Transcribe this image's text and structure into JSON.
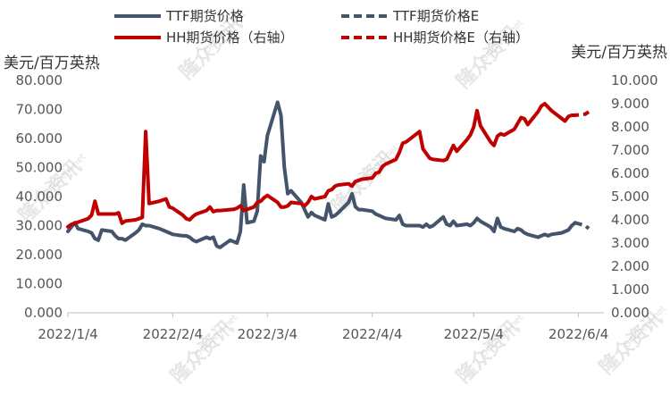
{
  "chart_data": {
    "type": "line",
    "x_labels": [
      "2022/1/4",
      "2022/2/4",
      "2022/3/4",
      "2022/4/4",
      "2022/5/4",
      "2022/6/4"
    ],
    "left_unit": "美元/百万英热",
    "right_unit": "美元/百万英热",
    "left_ticks": [
      "0.000",
      "10.000",
      "20.000",
      "30.000",
      "40.000",
      "50.000",
      "60.000",
      "70.000",
      "80.000"
    ],
    "right_ticks": [
      "0.000",
      "1.000",
      "2.000",
      "3.000",
      "4.000",
      "5.000",
      "6.000",
      "7.000",
      "8.000",
      "9.000",
      "10.000"
    ],
    "ylim_left": [
      0,
      80
    ],
    "ylim_right": [
      0,
      10
    ],
    "grid": false,
    "legend_position": "top",
    "series": [
      {
        "name": "TTF期货价格",
        "axis": "left",
        "color": "#44546a",
        "style": "solid",
        "points": [
          [
            "2022-01-04",
            28.0
          ],
          [
            "2022-01-05",
            29.5
          ],
          [
            "2022-01-06",
            31.0
          ],
          [
            "2022-01-07",
            29.0
          ],
          [
            "2022-01-10",
            28.0
          ],
          [
            "2022-01-11",
            27.5
          ],
          [
            "2022-01-12",
            25.5
          ],
          [
            "2022-01-13",
            25.0
          ],
          [
            "2022-01-14",
            28.5
          ],
          [
            "2022-01-17",
            28.0
          ],
          [
            "2022-01-18",
            26.5
          ],
          [
            "2022-01-19",
            25.5
          ],
          [
            "2022-01-20",
            25.5
          ],
          [
            "2022-01-21",
            25.0
          ],
          [
            "2022-01-24",
            27.5
          ],
          [
            "2022-01-25",
            28.5
          ],
          [
            "2022-01-26",
            30.5
          ],
          [
            "2022-01-27",
            30.0
          ],
          [
            "2022-01-28",
            30.0
          ],
          [
            "2022-01-31",
            29.0
          ],
          [
            "2022-02-01",
            28.5
          ],
          [
            "2022-02-02",
            28.0
          ],
          [
            "2022-02-03",
            27.5
          ],
          [
            "2022-02-04",
            27.0
          ],
          [
            "2022-02-07",
            26.5
          ],
          [
            "2022-02-08",
            26.5
          ],
          [
            "2022-02-09",
            26.0
          ],
          [
            "2022-02-10",
            25.0
          ],
          [
            "2022-02-11",
            24.5
          ],
          [
            "2022-02-14",
            26.0
          ],
          [
            "2022-02-15",
            25.5
          ],
          [
            "2022-02-16",
            26.0
          ],
          [
            "2022-02-17",
            23.0
          ],
          [
            "2022-02-18",
            22.5
          ],
          [
            "2022-02-21",
            25.0
          ],
          [
            "2022-02-22",
            24.5
          ],
          [
            "2022-02-23",
            24.0
          ],
          [
            "2022-02-24",
            28.0
          ],
          [
            "2022-02-25",
            44.0
          ],
          [
            "2022-02-26",
            31.0
          ],
          [
            "2022-02-28",
            31.5
          ],
          [
            "2022-03-01",
            35.0
          ],
          [
            "2022-03-02",
            54.0
          ],
          [
            "2022-03-03",
            52.0
          ],
          [
            "2022-03-04",
            61.0
          ],
          [
            "2022-03-07",
            72.5
          ],
          [
            "2022-03-08",
            68.0
          ],
          [
            "2022-03-09",
            50.0
          ],
          [
            "2022-03-10",
            41.0
          ],
          [
            "2022-03-11",
            42.0
          ],
          [
            "2022-03-14",
            38.0
          ],
          [
            "2022-03-15",
            35.5
          ],
          [
            "2022-03-16",
            33.0
          ],
          [
            "2022-03-17",
            34.5
          ],
          [
            "2022-03-18",
            33.5
          ],
          [
            "2022-03-21",
            32.0
          ],
          [
            "2022-03-22",
            37.5
          ],
          [
            "2022-03-23",
            33.0
          ],
          [
            "2022-03-24",
            33.5
          ],
          [
            "2022-03-25",
            34.5
          ],
          [
            "2022-03-28",
            38.0
          ],
          [
            "2022-03-29",
            41.0
          ],
          [
            "2022-03-30",
            36.5
          ],
          [
            "2022-03-31",
            35.5
          ],
          [
            "2022-04-01",
            35.5
          ],
          [
            "2022-04-04",
            35.0
          ],
          [
            "2022-04-05",
            34.0
          ],
          [
            "2022-04-06",
            33.5
          ],
          [
            "2022-04-07",
            33.0
          ],
          [
            "2022-04-08",
            32.5
          ],
          [
            "2022-04-11",
            32.0
          ],
          [
            "2022-04-12",
            33.5
          ],
          [
            "2022-04-13",
            30.5
          ],
          [
            "2022-04-14",
            30.0
          ],
          [
            "2022-04-18",
            30.0
          ],
          [
            "2022-04-19",
            29.5
          ],
          [
            "2022-04-20",
            30.5
          ],
          [
            "2022-04-21",
            29.5
          ],
          [
            "2022-04-22",
            30.0
          ],
          [
            "2022-04-25",
            33.0
          ],
          [
            "2022-04-26",
            30.5
          ],
          [
            "2022-04-27",
            30.0
          ],
          [
            "2022-04-28",
            31.5
          ],
          [
            "2022-04-29",
            30.0
          ],
          [
            "2022-05-02",
            30.5
          ],
          [
            "2022-05-03",
            30.0
          ],
          [
            "2022-05-04",
            31.0
          ],
          [
            "2022-05-05",
            32.5
          ],
          [
            "2022-05-06",
            31.5
          ],
          [
            "2022-05-09",
            29.5
          ],
          [
            "2022-05-10",
            28.0
          ],
          [
            "2022-05-11",
            32.5
          ],
          [
            "2022-05-12",
            29.5
          ],
          [
            "2022-05-13",
            29.0
          ],
          [
            "2022-05-16",
            28.0
          ],
          [
            "2022-05-17",
            29.0
          ],
          [
            "2022-05-18",
            28.5
          ],
          [
            "2022-05-19",
            27.5
          ],
          [
            "2022-05-20",
            27.0
          ],
          [
            "2022-05-23",
            26.0
          ],
          [
            "2022-05-24",
            26.5
          ],
          [
            "2022-05-25",
            27.0
          ],
          [
            "2022-05-26",
            26.5
          ],
          [
            "2022-05-27",
            27.0
          ],
          [
            "2022-05-30",
            27.5
          ],
          [
            "2022-05-31",
            28.0
          ],
          [
            "2022-06-01",
            28.5
          ],
          [
            "2022-06-02",
            30.0
          ],
          [
            "2022-06-03",
            31.0
          ]
        ]
      },
      {
        "name": "TTF期货价格E",
        "axis": "left",
        "color": "#44546a",
        "style": "dashed",
        "points": [
          [
            "2022-06-03",
            31.0
          ],
          [
            "2022-06-06",
            30.0
          ],
          [
            "2022-06-07",
            29.0
          ]
        ]
      },
      {
        "name": "HH期货价格（右轴）",
        "axis": "right",
        "color": "#c00000",
        "style": "solid",
        "points": [
          [
            "2022-01-04",
            3.7
          ],
          [
            "2022-01-05",
            3.8
          ],
          [
            "2022-01-06",
            3.85
          ],
          [
            "2022-01-07",
            3.9
          ],
          [
            "2022-01-10",
            4.05
          ],
          [
            "2022-01-11",
            4.2
          ],
          [
            "2022-01-12",
            4.8
          ],
          [
            "2022-01-13",
            4.25
          ],
          [
            "2022-01-14",
            4.25
          ],
          [
            "2022-01-18",
            4.25
          ],
          [
            "2022-01-19",
            4.3
          ],
          [
            "2022-01-20",
            3.85
          ],
          [
            "2022-01-21",
            3.95
          ],
          [
            "2022-01-24",
            4.0
          ],
          [
            "2022-01-25",
            4.05
          ],
          [
            "2022-01-26",
            4.1
          ],
          [
            "2022-01-27",
            7.8
          ],
          [
            "2022-01-28",
            4.7
          ],
          [
            "2022-01-31",
            4.8
          ],
          [
            "2022-02-01",
            4.85
          ],
          [
            "2022-02-02",
            4.9
          ],
          [
            "2022-02-03",
            4.55
          ],
          [
            "2022-02-04",
            4.5
          ],
          [
            "2022-02-07",
            4.2
          ],
          [
            "2022-02-08",
            4.05
          ],
          [
            "2022-02-09",
            4.0
          ],
          [
            "2022-02-10",
            4.15
          ],
          [
            "2022-02-11",
            4.25
          ],
          [
            "2022-02-14",
            4.4
          ],
          [
            "2022-02-15",
            4.55
          ],
          [
            "2022-02-16",
            4.35
          ],
          [
            "2022-02-17",
            4.4
          ],
          [
            "2022-02-18",
            4.4
          ],
          [
            "2022-02-22",
            4.45
          ],
          [
            "2022-02-23",
            4.5
          ],
          [
            "2022-02-24",
            4.6
          ],
          [
            "2022-02-25",
            4.4
          ],
          [
            "2022-02-28",
            4.55
          ],
          [
            "2022-03-01",
            4.75
          ],
          [
            "2022-03-02",
            4.8
          ],
          [
            "2022-03-03",
            4.95
          ],
          [
            "2022-03-04",
            5.05
          ],
          [
            "2022-03-07",
            4.75
          ],
          [
            "2022-03-08",
            4.55
          ],
          [
            "2022-03-09",
            4.55
          ],
          [
            "2022-03-10",
            4.6
          ],
          [
            "2022-03-11",
            4.75
          ],
          [
            "2022-03-14",
            4.7
          ],
          [
            "2022-03-15",
            4.6
          ],
          [
            "2022-03-16",
            4.75
          ],
          [
            "2022-03-17",
            5.0
          ],
          [
            "2022-03-18",
            4.9
          ],
          [
            "2022-03-21",
            5.0
          ],
          [
            "2022-03-22",
            5.25
          ],
          [
            "2022-03-23",
            5.3
          ],
          [
            "2022-03-24",
            5.45
          ],
          [
            "2022-03-25",
            5.5
          ],
          [
            "2022-03-28",
            5.55
          ],
          [
            "2022-03-29",
            5.45
          ],
          [
            "2022-03-30",
            5.65
          ],
          [
            "2022-03-31",
            5.7
          ],
          [
            "2022-04-01",
            5.75
          ],
          [
            "2022-04-04",
            5.8
          ],
          [
            "2022-04-05",
            6.0
          ],
          [
            "2022-04-06",
            6.05
          ],
          [
            "2022-04-07",
            6.3
          ],
          [
            "2022-04-08",
            6.4
          ],
          [
            "2022-04-11",
            6.6
          ],
          [
            "2022-04-12",
            6.9
          ],
          [
            "2022-04-13",
            7.3
          ],
          [
            "2022-04-14",
            7.35
          ],
          [
            "2022-04-18",
            7.8
          ],
          [
            "2022-04-19",
            7.05
          ],
          [
            "2022-04-20",
            6.85
          ],
          [
            "2022-04-21",
            6.65
          ],
          [
            "2022-04-22",
            6.6
          ],
          [
            "2022-04-25",
            6.55
          ],
          [
            "2022-04-26",
            6.6
          ],
          [
            "2022-04-27",
            6.9
          ],
          [
            "2022-04-28",
            7.2
          ],
          [
            "2022-04-29",
            6.95
          ],
          [
            "2022-05-02",
            7.45
          ],
          [
            "2022-05-03",
            7.65
          ],
          [
            "2022-05-04",
            8.0
          ],
          [
            "2022-05-05",
            8.7
          ],
          [
            "2022-05-06",
            8.05
          ],
          [
            "2022-05-09",
            7.35
          ],
          [
            "2022-05-10",
            7.2
          ],
          [
            "2022-05-11",
            7.6
          ],
          [
            "2022-05-12",
            7.7
          ],
          [
            "2022-05-13",
            7.65
          ],
          [
            "2022-05-16",
            7.9
          ],
          [
            "2022-05-17",
            8.15
          ],
          [
            "2022-05-18",
            8.4
          ],
          [
            "2022-05-19",
            8.35
          ],
          [
            "2022-05-20",
            8.1
          ],
          [
            "2022-05-23",
            8.65
          ],
          [
            "2022-05-24",
            8.9
          ],
          [
            "2022-05-25",
            9.0
          ],
          [
            "2022-05-26",
            8.85
          ],
          [
            "2022-05-27",
            8.7
          ],
          [
            "2022-05-31",
            8.25
          ],
          [
            "2022-06-01",
            8.45
          ],
          [
            "2022-06-02",
            8.5
          ]
        ]
      },
      {
        "name": "HH期货价格E（右轴）",
        "axis": "right",
        "color": "#c00000",
        "style": "dashed",
        "points": [
          [
            "2022-06-02",
            8.5
          ],
          [
            "2022-06-03",
            8.5
          ],
          [
            "2022-06-06",
            8.55
          ],
          [
            "2022-06-07",
            8.65
          ]
        ]
      }
    ]
  },
  "watermark": {
    "brand": "隆众资讯",
    "site": "OilChem.net"
  }
}
